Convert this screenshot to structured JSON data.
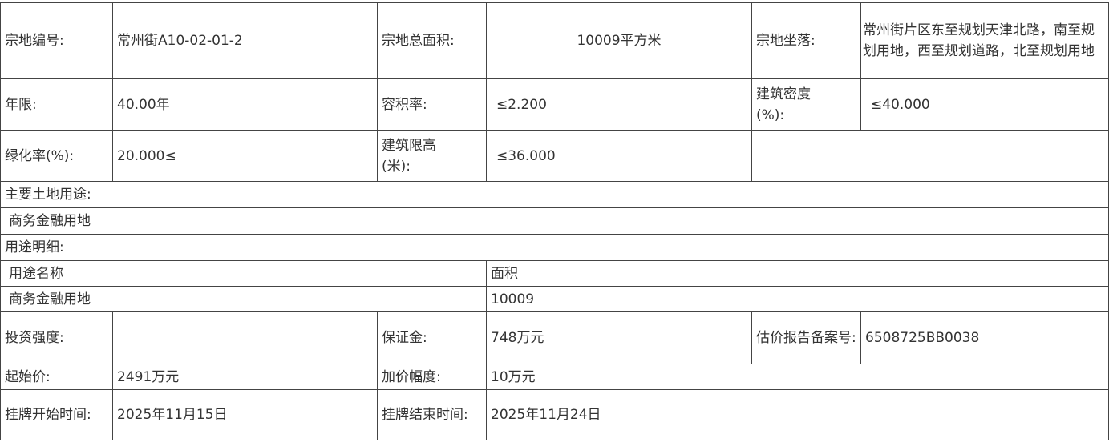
{
  "rows": {
    "parcel_no_label": "宗地编号:",
    "parcel_no": "常州街A10-02-01-2",
    "total_area_label": "宗地总面积:",
    "total_area": "10009平方米",
    "location_label": "宗地坐落:",
    "location": "常州街片区东至规划天津北路，南至规划用地，西至规划道路，北至规划用地",
    "term_label": "年限:",
    "term": "40.00年",
    "far_label": "容积率:",
    "far": "≤2.200",
    "density_label": "建筑密度(%):",
    "density": "≤40.000",
    "green_label": "绿化率(%):",
    "green": "20.000≤",
    "height_label": "建筑限高(米):",
    "height": "≤36.000",
    "main_use_label": "主要土地用途:",
    "main_use": "商务金融用地",
    "use_detail_label": "用途明细:",
    "use_name_header": "用途名称",
    "use_area_header": "面积",
    "use_name": "商务金融用地",
    "use_area": "10009",
    "investment_label": "投资强度:",
    "investment": "",
    "deposit_label": "保证金:",
    "deposit": "748万元",
    "appraisal_label": "估价报告备案号:",
    "appraisal": "6508725BB0038",
    "start_price_label": "起始价:",
    "start_price": "2491万元",
    "increment_label": "加价幅度:",
    "increment": "10万元",
    "listing_start_label": "挂牌开始时间:",
    "listing_start": "2025年11月15日",
    "listing_end_label": "挂牌结束时间:",
    "listing_end": "2025年11月24日"
  }
}
